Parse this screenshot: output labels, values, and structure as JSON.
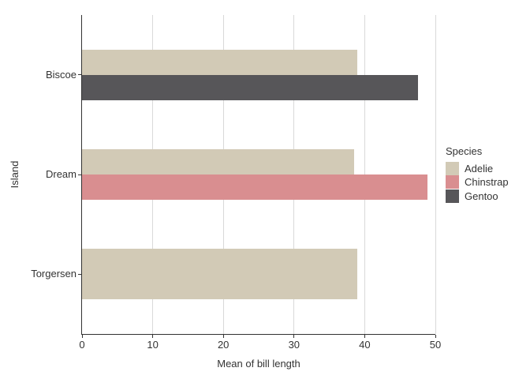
{
  "window": {
    "background": "#ffffff"
  },
  "chart_data": {
    "type": "bar",
    "orientation": "horizontal",
    "title": "",
    "xlabel": "Mean of bill length",
    "ylabel": "Island",
    "categories": [
      "Biscoe",
      "Dream",
      "Torgersen"
    ],
    "xlim": [
      0,
      50
    ],
    "x_ticks": [
      0,
      10,
      20,
      30,
      40,
      50
    ],
    "grid": "vertical major gridlines only, light gray on white panel",
    "legend": {
      "title": "Species",
      "position": "right"
    },
    "series": [
      {
        "name": "Adelie",
        "color": "#d2cab6",
        "values": {
          "Biscoe": 38.98,
          "Dream": 38.5,
          "Torgersen": 38.95
        }
      },
      {
        "name": "Chinstrap",
        "color": "#d98e90",
        "values": {
          "Dream": 48.83
        }
      },
      {
        "name": "Gentoo",
        "color": "#575659",
        "values": {
          "Biscoe": 47.5
        }
      }
    ],
    "colors": {
      "axis_line": "#333333",
      "grid_line": "#d9d9d9",
      "text": "#333333"
    }
  }
}
